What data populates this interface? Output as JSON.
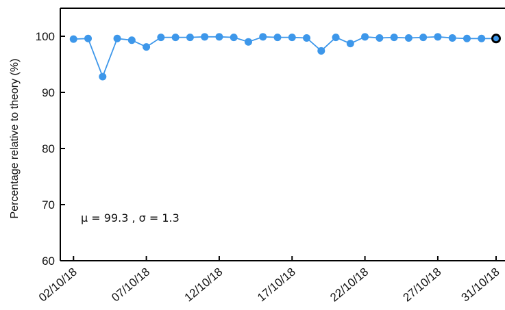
{
  "chart_data": {
    "type": "line",
    "title": "",
    "xlabel": "",
    "ylabel": "Percentage relative to theory (%)",
    "ylim": [
      60,
      105
    ],
    "xlim": [
      "2018-10-01",
      "2018-10-31"
    ],
    "yticks": [
      60,
      70,
      80,
      90,
      100
    ],
    "xticks": [
      "2018-10-02",
      "2018-10-07",
      "2018-10-12",
      "2018-10-17",
      "2018-10-22",
      "2018-10-27",
      "2018-10-31"
    ],
    "ytick_labels": [
      "60",
      "70",
      "80",
      "90",
      "100"
    ],
    "xtick_labels": [
      "02/10/18",
      "07/10/18",
      "12/10/18",
      "17/10/18",
      "22/10/18",
      "27/10/18",
      "31/10/18"
    ],
    "grid": false,
    "legend": "none",
    "annotation": "μ = 99.3 , σ = 1.3",
    "colors": {
      "series": "#3d97ea",
      "highlight_edge": "#000000",
      "axis": "#000000"
    },
    "series": [
      {
        "x": [
          "2018-10-02",
          "2018-10-03",
          "2018-10-04",
          "2018-10-05",
          "2018-10-06",
          "2018-10-07",
          "2018-10-08",
          "2018-10-09",
          "2018-10-10",
          "2018-10-11",
          "2018-10-12",
          "2018-10-13",
          "2018-10-14",
          "2018-10-15",
          "2018-10-16",
          "2018-10-17",
          "2018-10-18",
          "2018-10-19",
          "2018-10-20",
          "2018-10-21",
          "2018-10-22",
          "2018-10-23",
          "2018-10-24",
          "2018-10-25",
          "2018-10-26",
          "2018-10-27",
          "2018-10-28",
          "2018-10-29",
          "2018-10-30",
          "2018-10-31"
        ],
        "values": [
          99.5,
          99.6,
          92.8,
          99.6,
          99.3,
          98.1,
          99.8,
          99.8,
          99.8,
          99.9,
          99.9,
          99.8,
          99.0,
          99.9,
          99.8,
          99.8,
          99.7,
          97.4,
          99.8,
          98.7,
          99.9,
          99.7,
          99.8,
          99.7,
          99.8,
          99.9,
          99.7,
          99.6,
          99.6,
          99.6
        ]
      }
    ],
    "highlight_last_point": true
  }
}
